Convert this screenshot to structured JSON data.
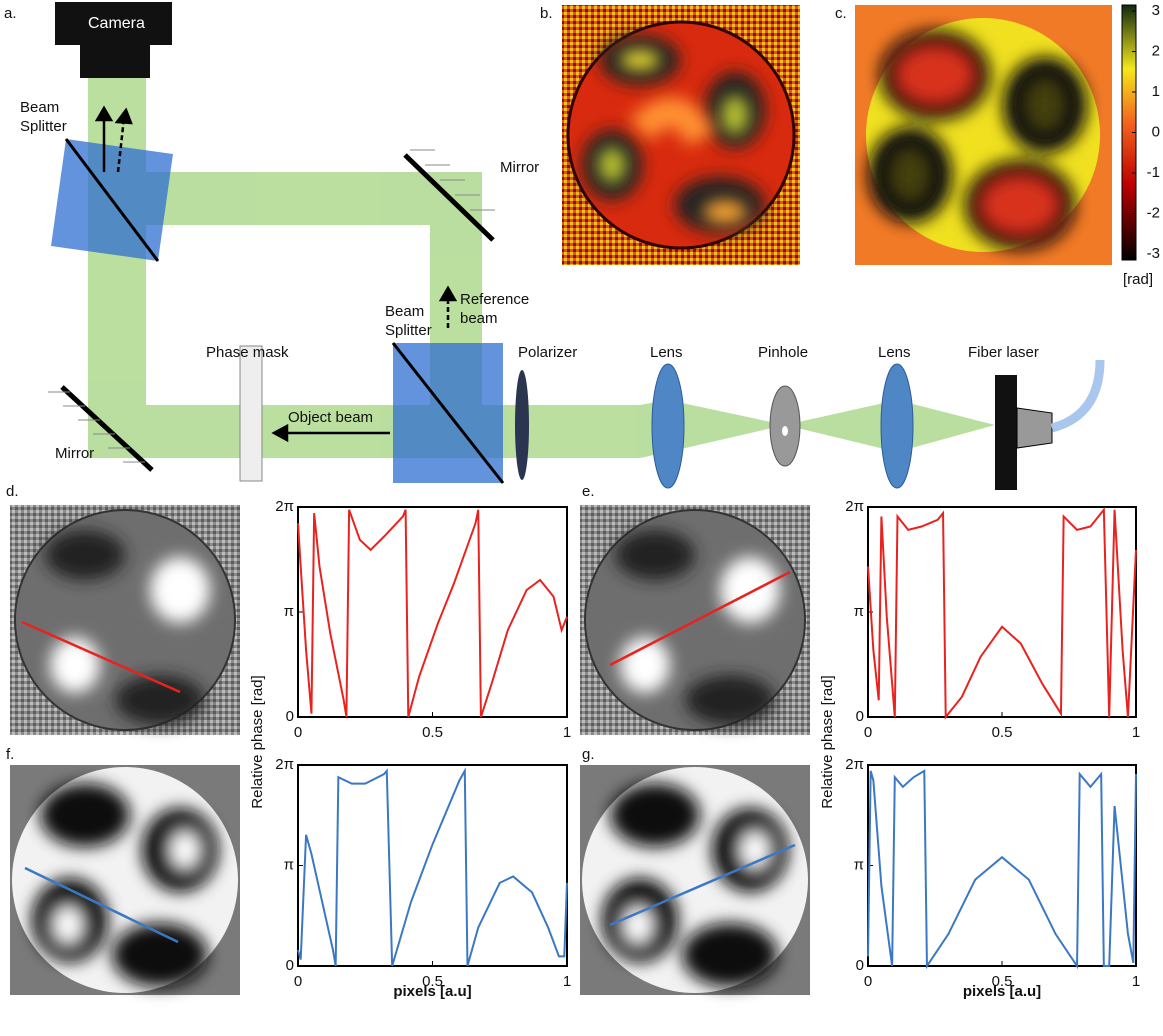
{
  "labels": {
    "camera": "Camera",
    "bs_top": "Beam Splitter",
    "mirror_top": "Mirror",
    "reference": "Reference beam",
    "phase_mask": "Phase mask",
    "bs_bottom": "Beam Splitter",
    "polarizer": "Polarizer",
    "lens1": "Lens",
    "pinhole": "Pinhole",
    "lens2": "Lens",
    "fiber": "Fiber laser",
    "object": "Object beam",
    "mirror_bottom": "Mirror"
  },
  "panels": {
    "a": "a.",
    "b": "b.",
    "c": "c.",
    "d": "d.",
    "e": "e.",
    "f": "f.",
    "g": "g."
  },
  "colorbar": {
    "lim": [
      -3.15,
      3.15
    ],
    "ticks": [
      3,
      2,
      1,
      0,
      -1,
      -2,
      -3
    ],
    "label": "[rad]"
  },
  "chart_data": [
    {
      "type": "line",
      "color": "#e8231f",
      "ylabel": "Relative phase [rad]",
      "xlim": [
        0,
        1
      ],
      "ylim": [
        0,
        6.2832
      ],
      "xticks": [
        0,
        0.5,
        1
      ],
      "yticks": [
        0,
        {
          "value": 3.1416,
          "label": "π"
        },
        {
          "value": 6.2832,
          "label": "2π"
        }
      ],
      "x": [
        0,
        0.01,
        0.03,
        0.05,
        0.06,
        0.08,
        0.12,
        0.17,
        0.18,
        0.19,
        0.23,
        0.27,
        0.32,
        0.39,
        0.4,
        0.41,
        0.45,
        0.52,
        0.58,
        0.66,
        0.67,
        0.68,
        0.72,
        0.78,
        0.85,
        0.9,
        0.95,
        0.98,
        1
      ],
      "values": [
        5.8,
        4.5,
        2.0,
        0.1,
        6.1,
        4.5,
        2.5,
        0.5,
        0,
        6.2,
        5.3,
        5.0,
        5.4,
        6.0,
        6.2,
        0,
        1.2,
        2.8,
        4.0,
        5.8,
        6.2,
        0,
        1.0,
        2.6,
        3.8,
        4.1,
        3.6,
        2.6,
        3.0
      ]
    },
    {
      "type": "line",
      "color": "#e8231f",
      "ylabel": "Relative phase [rad]",
      "xlim": [
        0,
        1
      ],
      "ylim": [
        0,
        6.2832
      ],
      "xticks": [
        0,
        0.5,
        1
      ],
      "yticks": [
        0,
        {
          "value": 3.1416,
          "label": "π"
        },
        {
          "value": 6.2832,
          "label": "2π"
        }
      ],
      "x": [
        0,
        0.02,
        0.04,
        0.05,
        0.07,
        0.1,
        0.11,
        0.15,
        0.2,
        0.26,
        0.28,
        0.29,
        0.35,
        0.42,
        0.5,
        0.57,
        0.65,
        0.72,
        0.73,
        0.78,
        0.83,
        0.88,
        0.9,
        0.92,
        0.95,
        0.97,
        1
      ],
      "values": [
        4.5,
        2.0,
        0.5,
        6.0,
        3.0,
        0,
        6.0,
        5.6,
        5.7,
        5.9,
        6.1,
        0,
        0.6,
        1.8,
        2.7,
        2.2,
        1.0,
        0.1,
        6.0,
        5.6,
        5.7,
        6.2,
        0,
        6.2,
        2.0,
        0,
        5.0
      ]
    },
    {
      "type": "line",
      "color": "#3b78c4",
      "xlabel": "pixels [a.u]",
      "xlim": [
        0,
        1
      ],
      "ylim": [
        0,
        6.2832
      ],
      "xticks": [
        0,
        0.5,
        1
      ],
      "yticks": [
        0,
        {
          "value": 3.1416,
          "label": "π"
        },
        {
          "value": 6.2832,
          "label": "2π"
        }
      ],
      "x": [
        0,
        0.01,
        0.03,
        0.05,
        0.09,
        0.13,
        0.14,
        0.15,
        0.2,
        0.25,
        0.32,
        0.33,
        0.35,
        0.42,
        0.5,
        0.6,
        0.62,
        0.63,
        0.67,
        0.75,
        0.8,
        0.87,
        0.93,
        0.97,
        0.99,
        1
      ],
      "values": [
        0.5,
        0.2,
        4.1,
        3.5,
        2.0,
        0.5,
        0,
        5.9,
        5.7,
        5.7,
        6.0,
        6.1,
        0,
        2.0,
        3.8,
        5.8,
        6.1,
        0,
        1.2,
        2.6,
        2.8,
        2.3,
        1.2,
        0.3,
        0.3,
        2.6
      ]
    },
    {
      "type": "line",
      "color": "#3b78c4",
      "xlabel": "pixels [a.u]",
      "xlim": [
        0,
        1
      ],
      "ylim": [
        0,
        6.2832
      ],
      "xticks": [
        0,
        0.5,
        1
      ],
      "yticks": [
        0,
        {
          "value": 3.1416,
          "label": "π"
        },
        {
          "value": 6.2832,
          "label": "2π"
        }
      ],
      "x": [
        0,
        0.01,
        0.02,
        0.05,
        0.09,
        0.1,
        0.13,
        0.17,
        0.21,
        0.22,
        0.3,
        0.4,
        0.5,
        0.6,
        0.7,
        0.78,
        0.79,
        0.83,
        0.87,
        0.88,
        0.9,
        0.92,
        0.97,
        0.99,
        1
      ],
      "values": [
        0.3,
        6.1,
        5.8,
        2.5,
        0,
        5.9,
        5.6,
        5.9,
        6.1,
        0,
        1.0,
        2.7,
        3.4,
        2.7,
        1.0,
        0,
        6.0,
        5.6,
        6.0,
        0,
        0,
        5.0,
        1.0,
        0.1,
        6.0
      ]
    }
  ]
}
